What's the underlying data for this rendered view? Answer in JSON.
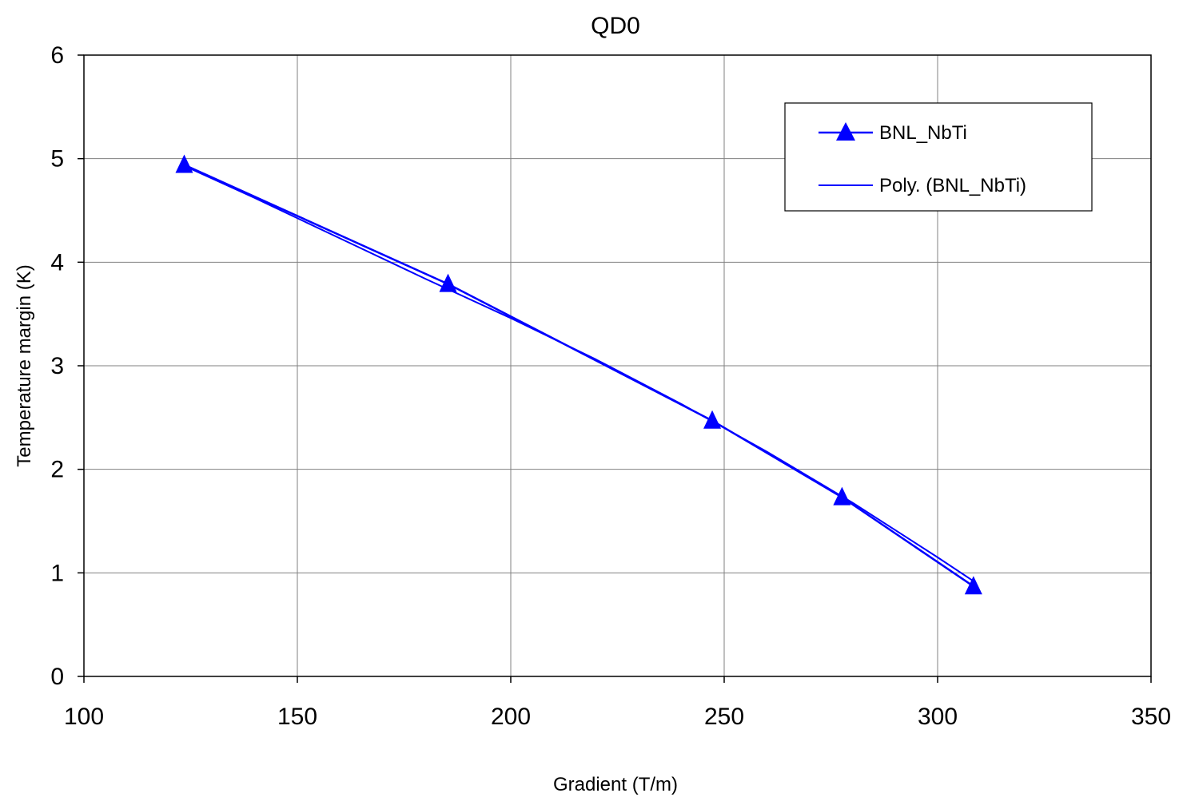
{
  "chart_data": {
    "type": "line",
    "title": "QD0",
    "xlabel": "Gradient (T/m)",
    "ylabel": "Temperature margin (K)",
    "xlim": [
      100,
      350
    ],
    "ylim": [
      0,
      6
    ],
    "xticks": [
      "100",
      "150",
      "200",
      "250",
      "300",
      "350"
    ],
    "yticks": [
      "0",
      "1",
      "2",
      "3",
      "4",
      "5",
      "6"
    ],
    "grid": true,
    "legend_position": "top-right",
    "series": [
      {
        "name": "BNL_NbTi",
        "marker": "triangle",
        "color": "#0000ff",
        "x": [
          123.5,
          185.3,
          247.2,
          277.6,
          308.4
        ],
        "y": [
          4.94,
          3.79,
          2.47,
          1.73,
          0.87
        ]
      },
      {
        "name": "Poly. (BNL_NbTi)",
        "marker": "none",
        "color": "#0000ff",
        "trendline": "polynomial",
        "x": [
          123.5,
          140,
          160,
          180,
          200,
          220,
          240,
          260,
          280,
          300,
          308.4
        ],
        "y": [
          4.93,
          4.62,
          4.23,
          3.84,
          3.46,
          3.06,
          2.63,
          2.17,
          1.68,
          1.15,
          0.92
        ]
      }
    ]
  }
}
